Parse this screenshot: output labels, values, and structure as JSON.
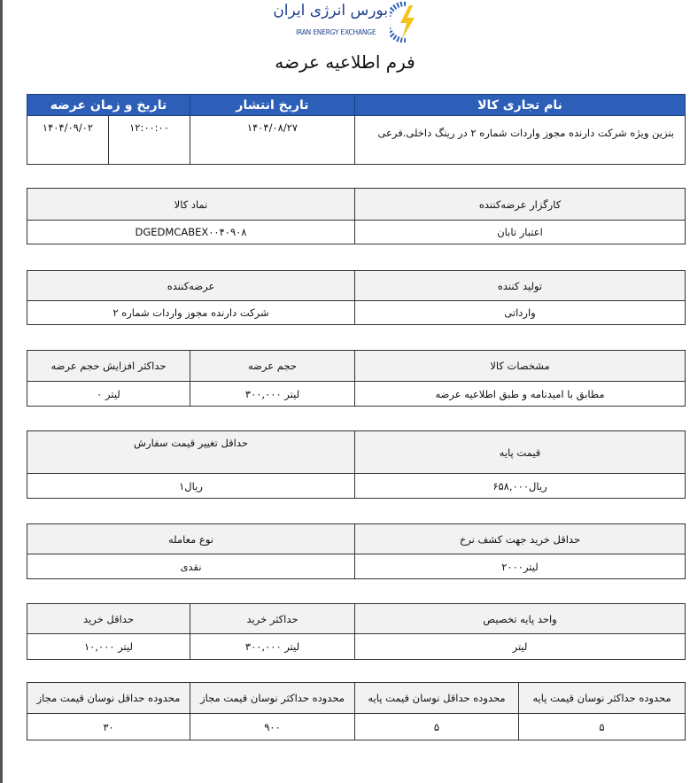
{
  "logo": {
    "text_fa": "بورس انرژی ایران",
    "text_en": "IRAN ENERGY EXCHANGE"
  },
  "title": "فرم اطلاعیه عرضه",
  "colors": {
    "header_blue": "#2d5fb8",
    "header_gray": "#f2f2f2"
  },
  "t1": {
    "headers": [
      "نام تجاری کالا",
      "تاریخ انتشار",
      "تاریخ و زمان عرضه"
    ],
    "product": "بنزین ویژه شرکت دارنده مجوز واردات شماره ۲ در رینگ داخلی.فرعی",
    "publish_date": "۱۴۰۴/۰۸/۲۷",
    "offer_time": "۱۲:۰۰:۰۰",
    "offer_date": "۱۴۰۴/۰۹/۰۲"
  },
  "t2": {
    "headers": [
      "کارگزار عرضه‌کننده",
      "نماد کالا"
    ],
    "values": [
      "اعتبار تابان",
      "DGEDMCABEX۰۰۴۰۹۰۸"
    ]
  },
  "t3": {
    "headers": [
      "تولید کننده",
      "عرضه‌کننده"
    ],
    "values": [
      "وارداتی",
      "شرکت دارنده مجوز واردات شماره ۲"
    ]
  },
  "t4": {
    "headers": [
      "مشخصات کالا",
      "حجم عرضه",
      "حداکثر افزایش حجم عرضه"
    ],
    "values": [
      "مطابق با امیدنامه و طبق اطلاعیه عرضه",
      "لیتر ۳۰۰,۰۰۰",
      "لیتر ۰"
    ]
  },
  "t5": {
    "headers": [
      "قیمت پایه",
      "حداقل تغییر قیمت سفارش"
    ],
    "values": [
      "ریال۶۵۸,۰۰۰",
      "ریال۱"
    ]
  },
  "t6": {
    "headers": [
      "حداقل خرید جهت کشف نرخ",
      "نوع معامله"
    ],
    "values": [
      "لیتر۲۰۰۰",
      "نقدی"
    ]
  },
  "t7": {
    "headers": [
      "واحد پایه تخصیص",
      "حداکثر خرید",
      "حداقل خرید"
    ],
    "values": [
      "لیتر",
      "لیتر ۳۰۰,۰۰۰",
      "لیتر ۱۰,۰۰۰"
    ]
  },
  "t8": {
    "headers": [
      "محدوده حداکثر نوسان قیمت پایه",
      "محدوده حداقل نوسان قیمت پایه",
      "محدوده حداکثر نوسان قیمت مجاز",
      "محدوده حداقل نوسان قیمت مجاز"
    ],
    "values": [
      "۵",
      "۵",
      "۹۰۰",
      "۳۰"
    ]
  }
}
